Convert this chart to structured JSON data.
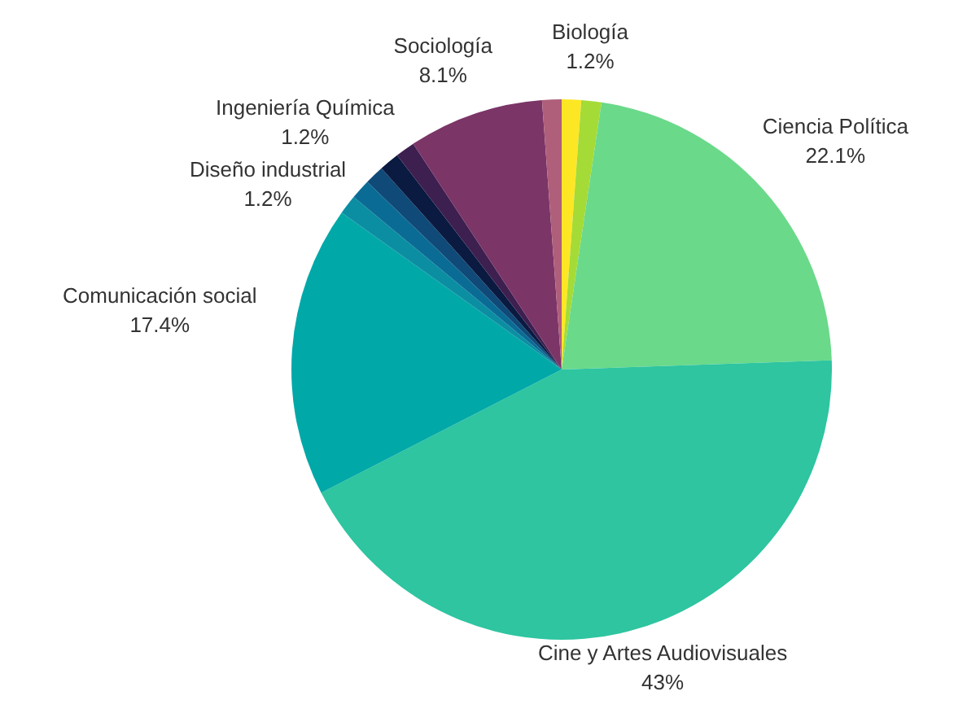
{
  "chart_data": {
    "type": "pie",
    "categories": [
      null,
      "Biología",
      "Ciencia Política",
      "Cine y Artes Audiovisuales",
      "Comunicación social",
      null,
      "Diseño industrial",
      null,
      "Ingeniería Química",
      null,
      "Sociología",
      null
    ],
    "values": [
      1.16,
      1.2,
      22.1,
      43,
      17.4,
      1.16,
      1.2,
      1.16,
      1.2,
      1.16,
      8.1,
      1.16
    ],
    "value_labels": [
      null,
      "1.2%",
      "22.1%",
      "43%",
      "17.4%",
      null,
      "1.2%",
      null,
      "1.2%",
      null,
      "8.1%",
      null
    ],
    "colors": [
      "#fde725",
      "#a5db36",
      "#6ad98a",
      "#2ec5a0",
      "#00a8a8",
      "#0b8ea2",
      "#0a6c95",
      "#0f4a78",
      "#0a1a40",
      "#3d1f50",
      "#7b3567",
      "#b05f7a"
    ]
  }
}
